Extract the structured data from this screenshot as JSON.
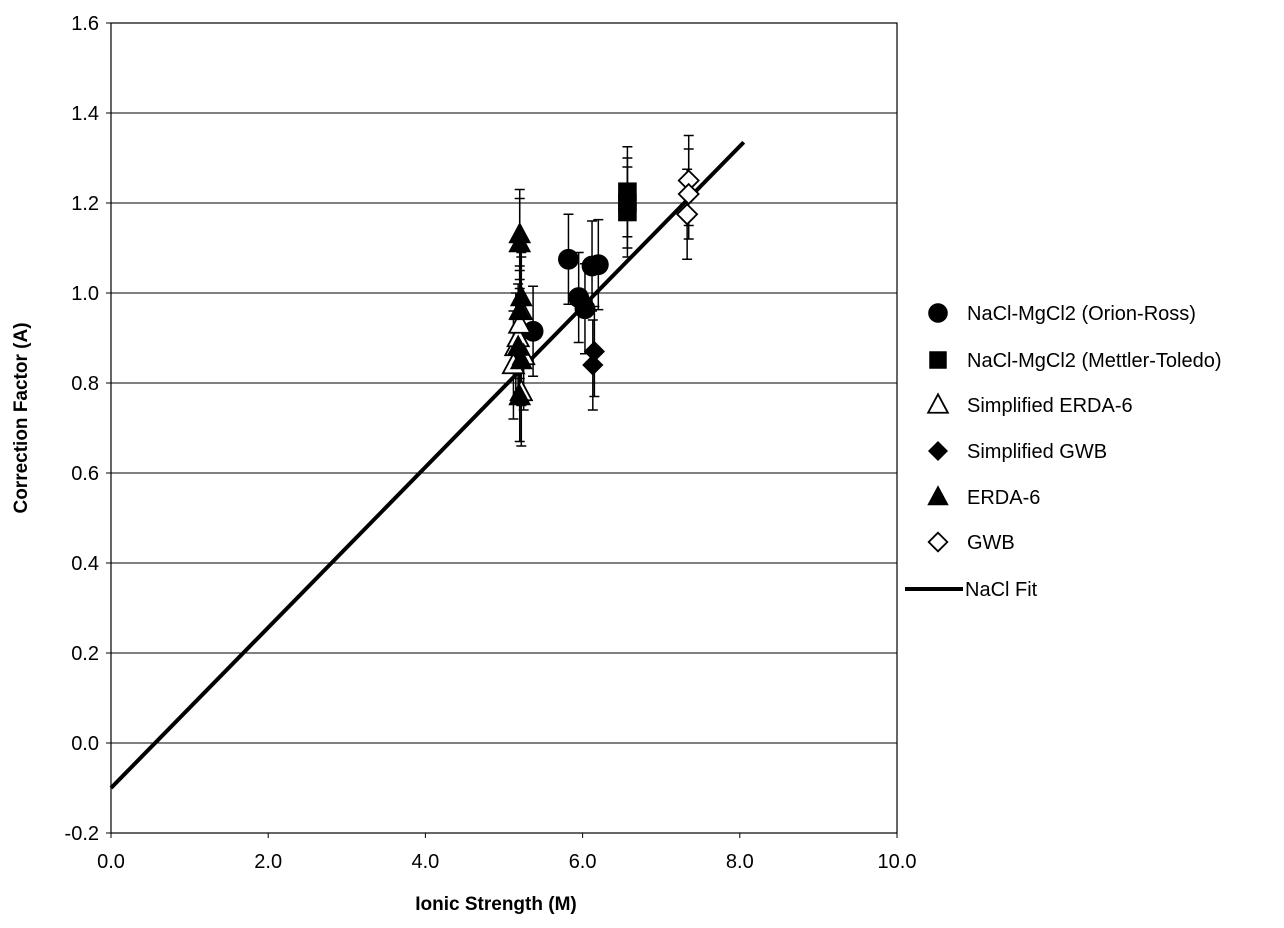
{
  "chart_data": {
    "type": "scatter",
    "title": "",
    "xlabel": "Ionic Strength (M)",
    "ylabel": "Correction Factor (A)",
    "xlim": [
      0,
      10
    ],
    "ylim": [
      -0.2,
      1.6
    ],
    "xticks": [
      0,
      2,
      4,
      6,
      8,
      10
    ],
    "yticks": [
      -0.2,
      0,
      0.2,
      0.4,
      0.6,
      0.8,
      1.0,
      1.2,
      1.4,
      1.6
    ],
    "xtick_labels": [
      "0.0",
      "2.0",
      "4.0",
      "6.0",
      "8.0",
      "10.0"
    ],
    "ytick_labels": [
      "-0.2",
      "0.0",
      "0.2",
      "0.4",
      "0.6",
      "0.8",
      "1.0",
      "1.2",
      "1.4",
      "1.6"
    ],
    "grid": "horizontal",
    "legend_position": "right",
    "series": [
      {
        "name": "NaCl-MgCl2 (Orion-Ross)",
        "marker": "circle",
        "fill": "#000000",
        "points": [
          {
            "x": 5.37,
            "y": 0.915,
            "err": 0.1
          },
          {
            "x": 5.82,
            "y": 1.075,
            "err": 0.1
          },
          {
            "x": 5.95,
            "y": 0.99,
            "err": 0.1
          },
          {
            "x": 6.03,
            "y": 0.965,
            "err": 0.1
          },
          {
            "x": 6.12,
            "y": 1.06,
            "err": 0.1
          },
          {
            "x": 6.2,
            "y": 1.063,
            "err": 0.1
          }
        ]
      },
      {
        "name": "NaCl-MgCl2 (Mettler-Toledo)",
        "marker": "square",
        "fill": "#000000",
        "points": [
          {
            "x": 6.57,
            "y": 1.225,
            "err": 0.1
          },
          {
            "x": 6.57,
            "y": 1.2,
            "err": 0.1
          },
          {
            "x": 6.57,
            "y": 1.18,
            "err": 0.1
          }
        ]
      },
      {
        "name": "Simplified ERDA-6",
        "marker": "triangle-open",
        "fill": "#ffffff",
        "points": [
          {
            "x": 5.12,
            "y": 0.84,
            "err": 0.12
          },
          {
            "x": 5.15,
            "y": 0.88,
            "err": 0.12
          },
          {
            "x": 5.18,
            "y": 0.9,
            "err": 0.12
          },
          {
            "x": 5.2,
            "y": 0.93,
            "err": 0.12
          },
          {
            "x": 5.22,
            "y": 0.96,
            "err": 0.12
          },
          {
            "x": 5.25,
            "y": 0.86,
            "err": 0.12
          },
          {
            "x": 5.22,
            "y": 0.78,
            "err": 0.12
          }
        ]
      },
      {
        "name": "Simplified GWB",
        "marker": "diamond",
        "fill": "#000000",
        "points": [
          {
            "x": 6.15,
            "y": 0.87,
            "err": 0.1
          },
          {
            "x": 6.13,
            "y": 0.84,
            "err": 0.1
          }
        ]
      },
      {
        "name": "ERDA-6",
        "marker": "triangle",
        "fill": "#000000",
        "points": [
          {
            "x": 5.2,
            "y": 1.13,
            "err": 0.1
          },
          {
            "x": 5.2,
            "y": 1.11,
            "err": 0.1
          },
          {
            "x": 5.22,
            "y": 0.99,
            "err": 0.1
          },
          {
            "x": 5.2,
            "y": 0.96,
            "err": 0.1
          },
          {
            "x": 5.18,
            "y": 0.88,
            "err": 0.1
          },
          {
            "x": 5.22,
            "y": 0.85,
            "err": 0.1
          },
          {
            "x": 5.2,
            "y": 0.77,
            "err": 0.1
          }
        ]
      },
      {
        "name": "GWB",
        "marker": "diamond-open",
        "fill": "#ffffff",
        "points": [
          {
            "x": 7.35,
            "y": 1.25,
            "err": 0.1
          },
          {
            "x": 7.35,
            "y": 1.22,
            "err": 0.1
          },
          {
            "x": 7.33,
            "y": 1.175,
            "err": 0.1
          }
        ]
      },
      {
        "name": "NaCl Fit",
        "marker": "line",
        "fill": "#000000",
        "points": [
          {
            "x": 0.0,
            "y": -0.1
          },
          {
            "x": 8.05,
            "y": 1.335
          }
        ]
      }
    ]
  }
}
